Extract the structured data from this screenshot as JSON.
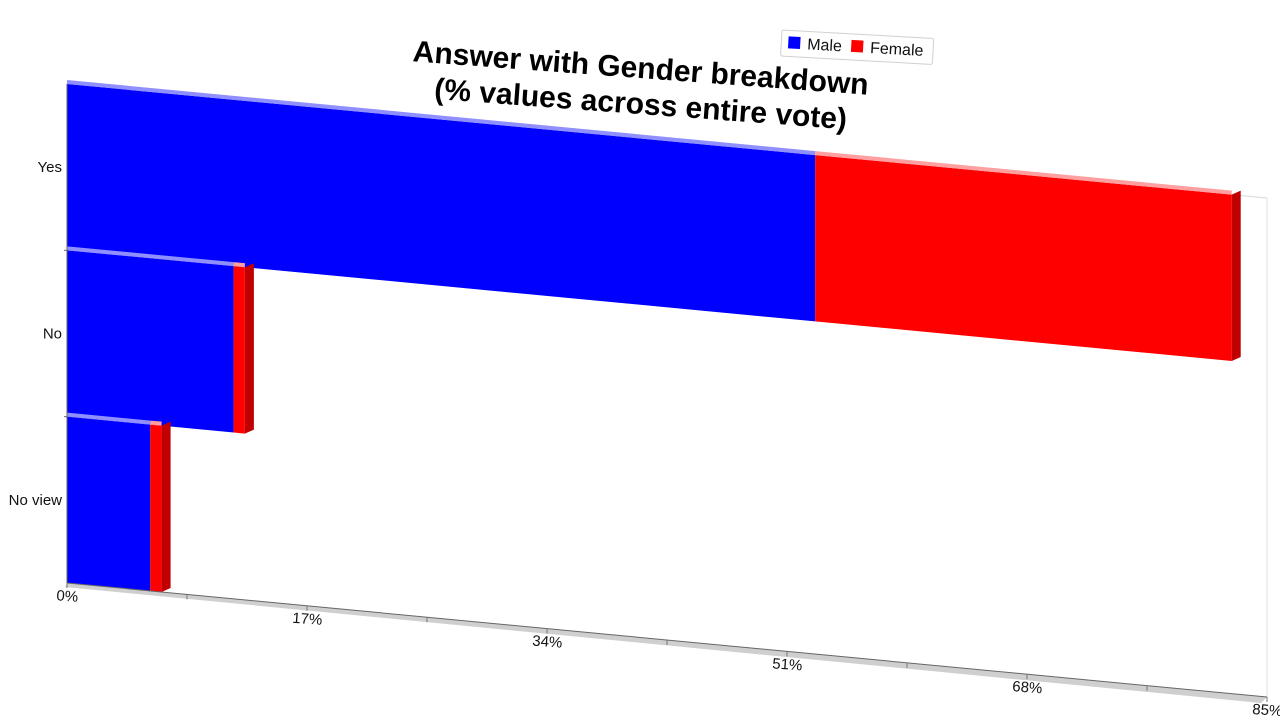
{
  "chart_data": {
    "type": "bar",
    "orientation": "horizontal",
    "stacked": true,
    "title": "Answer with Gender breakdown",
    "subtitle": "(% values across entire vote)",
    "categories": [
      "Yes",
      "No",
      "No view"
    ],
    "series": [
      {
        "name": "Male",
        "values": [
          53.0,
          11.8,
          5.9
        ]
      },
      {
        "name": "Female",
        "values": [
          29.5,
          0.8,
          0.8
        ]
      }
    ],
    "x_ticks": [
      "0%",
      "17%",
      "34%",
      "51%",
      "68%",
      "85%"
    ],
    "xlim": [
      0,
      85
    ],
    "legend_position": "top-right",
    "grid": false
  },
  "colors": {
    "Male": "#0000ff",
    "Female": "#ff0000",
    "Female_side": "#c00000",
    "axis": "#999999"
  }
}
